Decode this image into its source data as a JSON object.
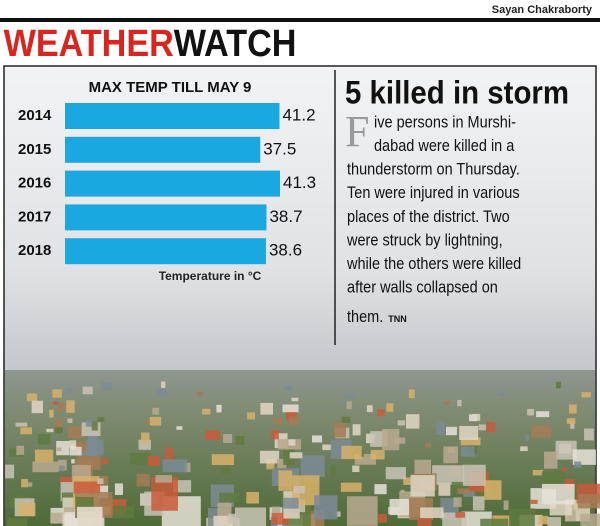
{
  "byline": "Sayan Chakraborty",
  "header": {
    "title_red": "WEATHER",
    "title_black": "WATCH"
  },
  "chart_data": {
    "type": "bar",
    "orientation": "horizontal",
    "title": "MAX TEMP TILL MAY 9",
    "categories": [
      "2014",
      "2015",
      "2016",
      "2017",
      "2018"
    ],
    "values": [
      41.2,
      37.5,
      41.3,
      38.7,
      38.6
    ],
    "color": "#1ba8e0",
    "xlabel": "Temperature in °C"
  },
  "article": {
    "headline": "5 killed in storm",
    "lines": [
      "Five persons in Murshi-",
      "dabad were killed in a",
      "thunderstorm on Thursday.",
      "Ten were injured in various",
      "places of the district. Two",
      "were struck by lightning,",
      "while the others were killed",
      "after walls collapsed on",
      "them."
    ],
    "credit": "TNN"
  }
}
